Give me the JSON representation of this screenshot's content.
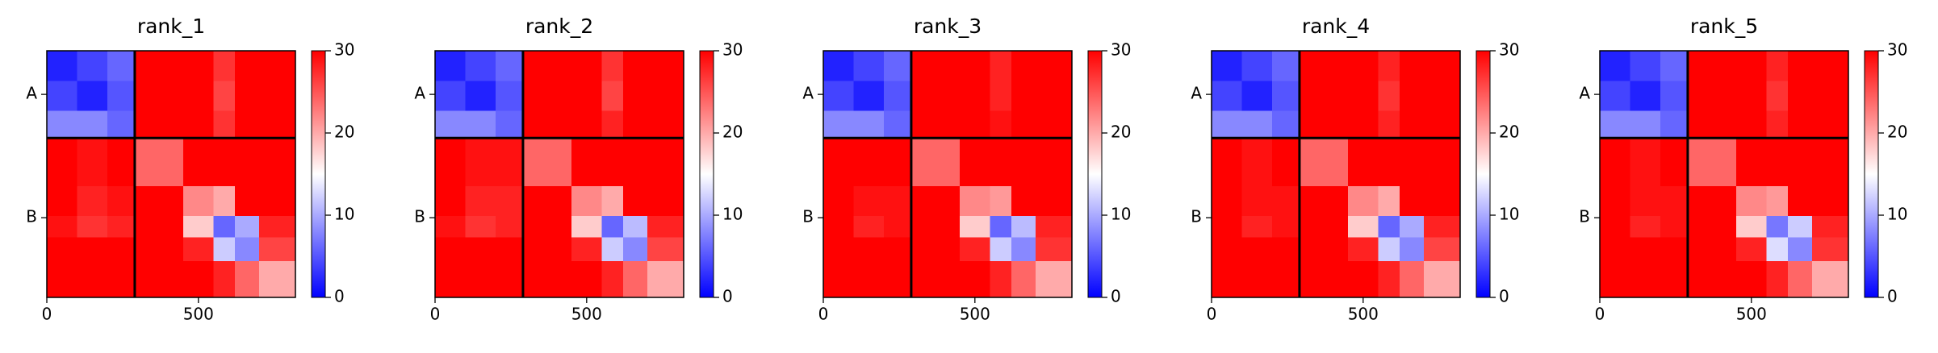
{
  "chart_data": [
    {
      "type": "heatmap",
      "title": "rank_1",
      "colormap": "bwr",
      "bins": [
        0,
        100,
        200,
        290,
        450,
        550,
        620,
        700,
        820
      ],
      "values": [
        [
          2,
          4,
          6,
          30,
          30,
          27,
          30,
          30
        ],
        [
          4,
          2,
          5,
          30,
          30,
          26,
          30,
          30
        ],
        [
          8,
          8,
          6,
          30,
          30,
          27,
          30,
          30
        ],
        [
          30,
          29,
          30,
          24,
          30,
          30,
          30,
          30
        ],
        [
          30,
          28,
          29,
          30,
          22,
          20,
          30,
          30
        ],
        [
          29,
          27,
          28,
          30,
          18,
          6,
          10,
          28
        ],
        [
          30,
          30,
          30,
          30,
          28,
          12,
          8,
          26
        ],
        [
          30,
          30,
          30,
          30,
          30,
          28,
          24,
          20
        ]
      ],
      "xlim": [
        0,
        820
      ],
      "ylim": [
        820,
        0
      ],
      "xticks": [
        0,
        500
      ],
      "yticks": [
        {
          "value": 145,
          "label": "A"
        },
        {
          "value": 555,
          "label": "B"
        }
      ],
      "chain_breaks": [
        290
      ],
      "clim": [
        0,
        30
      ],
      "cticks": [
        0,
        10,
        20,
        30
      ]
    },
    {
      "type": "heatmap",
      "title": "rank_2",
      "colormap": "bwr",
      "bins": [
        0,
        100,
        200,
        290,
        450,
        550,
        620,
        700,
        820
      ],
      "values": [
        [
          2,
          4,
          6,
          30,
          30,
          27,
          30,
          30
        ],
        [
          4,
          2,
          5,
          30,
          30,
          26,
          30,
          30
        ],
        [
          8,
          8,
          6,
          30,
          30,
          28,
          30,
          30
        ],
        [
          30,
          29,
          29,
          24,
          30,
          30,
          30,
          30
        ],
        [
          30,
          28,
          28,
          30,
          22,
          20,
          30,
          30
        ],
        [
          29,
          27,
          28,
          30,
          18,
          6,
          11,
          28
        ],
        [
          30,
          30,
          30,
          30,
          28,
          12,
          8,
          26
        ],
        [
          30,
          30,
          30,
          30,
          30,
          28,
          24,
          20
        ]
      ],
      "xlim": [
        0,
        820
      ],
      "ylim": [
        820,
        0
      ],
      "xticks": [
        0,
        500
      ],
      "yticks": [
        {
          "value": 145,
          "label": "A"
        },
        {
          "value": 555,
          "label": "B"
        }
      ],
      "chain_breaks": [
        290
      ],
      "clim": [
        0,
        30
      ],
      "cticks": [
        0,
        10,
        20,
        30
      ]
    },
    {
      "type": "heatmap",
      "title": "rank_3",
      "colormap": "bwr",
      "bins": [
        0,
        100,
        200,
        290,
        450,
        550,
        620,
        700,
        820
      ],
      "values": [
        [
          2,
          4,
          6,
          30,
          30,
          28,
          30,
          30
        ],
        [
          4,
          2,
          5,
          30,
          30,
          28,
          30,
          30
        ],
        [
          8,
          8,
          6,
          30,
          30,
          29,
          30,
          30
        ],
        [
          30,
          30,
          30,
          24,
          30,
          30,
          30,
          30
        ],
        [
          30,
          29,
          29,
          30,
          22,
          21,
          30,
          30
        ],
        [
          30,
          28,
          29,
          30,
          18,
          6,
          11,
          28
        ],
        [
          30,
          30,
          30,
          30,
          28,
          12,
          8,
          27
        ],
        [
          30,
          30,
          30,
          30,
          30,
          28,
          24,
          20
        ]
      ],
      "xlim": [
        0,
        820
      ],
      "ylim": [
        820,
        0
      ],
      "xticks": [
        0,
        500
      ],
      "yticks": [
        {
          "value": 145,
          "label": "A"
        },
        {
          "value": 555,
          "label": "B"
        }
      ],
      "chain_breaks": [
        290
      ],
      "clim": [
        0,
        30
      ],
      "cticks": [
        0,
        10,
        20,
        30
      ]
    },
    {
      "type": "heatmap",
      "title": "rank_4",
      "colormap": "bwr",
      "bins": [
        0,
        100,
        200,
        290,
        450,
        550,
        620,
        700,
        820
      ],
      "values": [
        [
          2,
          4,
          6,
          30,
          30,
          28,
          30,
          30
        ],
        [
          4,
          2,
          5,
          30,
          30,
          27,
          30,
          30
        ],
        [
          8,
          8,
          6,
          30,
          30,
          28,
          30,
          30
        ],
        [
          30,
          29,
          30,
          24,
          30,
          30,
          30,
          30
        ],
        [
          30,
          29,
          29,
          30,
          22,
          20,
          30,
          30
        ],
        [
          30,
          28,
          29,
          30,
          18,
          6,
          10,
          28
        ],
        [
          30,
          30,
          30,
          30,
          28,
          12,
          8,
          26
        ],
        [
          30,
          30,
          30,
          30,
          30,
          28,
          24,
          20
        ]
      ],
      "xlim": [
        0,
        820
      ],
      "ylim": [
        820,
        0
      ],
      "xticks": [
        0,
        500
      ],
      "yticks": [
        {
          "value": 145,
          "label": "A"
        },
        {
          "value": 555,
          "label": "B"
        }
      ],
      "chain_breaks": [
        290
      ],
      "clim": [
        0,
        30
      ],
      "cticks": [
        0,
        10,
        20,
        30
      ]
    },
    {
      "type": "heatmap",
      "title": "rank_5",
      "colormap": "bwr",
      "bins": [
        0,
        100,
        200,
        290,
        450,
        550,
        620,
        700,
        820
      ],
      "values": [
        [
          2,
          4,
          6,
          30,
          30,
          28,
          30,
          30
        ],
        [
          4,
          2,
          5,
          30,
          30,
          27,
          30,
          30
        ],
        [
          8,
          8,
          6,
          30,
          30,
          28,
          30,
          30
        ],
        [
          30,
          29,
          30,
          24,
          30,
          30,
          30,
          30
        ],
        [
          30,
          29,
          29,
          30,
          22,
          21,
          30,
          30
        ],
        [
          30,
          28,
          29,
          30,
          18,
          7,
          12,
          28
        ],
        [
          30,
          30,
          30,
          30,
          28,
          13,
          8,
          27
        ],
        [
          30,
          30,
          30,
          30,
          30,
          28,
          24,
          20
        ]
      ],
      "xlim": [
        0,
        820
      ],
      "ylim": [
        820,
        0
      ],
      "xticks": [
        0,
        500
      ],
      "yticks": [
        {
          "value": 145,
          "label": "A"
        },
        {
          "value": 555,
          "label": "B"
        }
      ],
      "chain_breaks": [
        290
      ],
      "clim": [
        0,
        30
      ],
      "cticks": [
        0,
        10,
        20,
        30
      ]
    }
  ]
}
